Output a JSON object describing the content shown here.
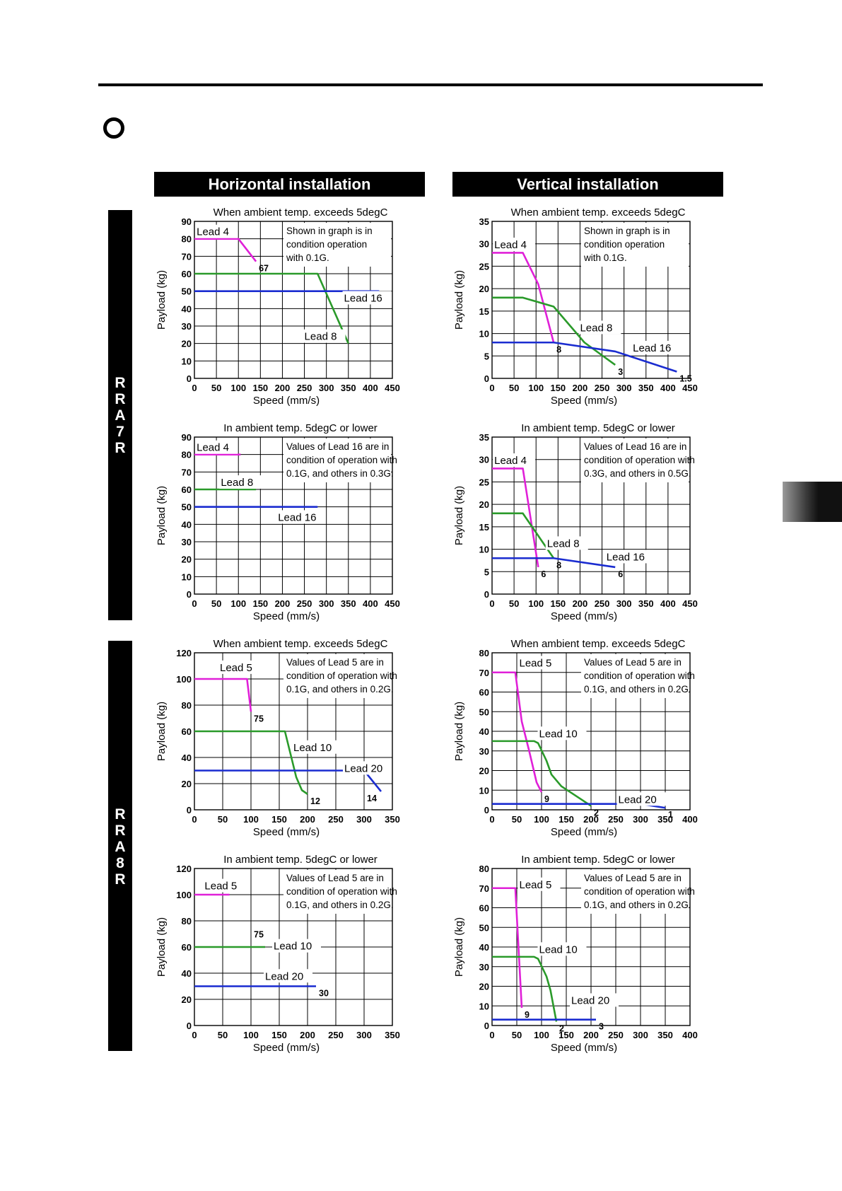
{
  "page": {
    "columns": [
      "Horizontal installation",
      "Vertical installation"
    ],
    "models": [
      {
        "name": "RRA7R",
        "letters": [
          "R",
          "R",
          "A",
          "7",
          "R"
        ]
      },
      {
        "name": "RRA8R",
        "letters": [
          "R",
          "R",
          "A",
          "8",
          "R"
        ]
      }
    ]
  },
  "chart_data": [
    {
      "type": "line",
      "title": "When ambient temp. exceeds 5degC",
      "xlabel": "Speed (mm/s)",
      "ylabel": "Payload (kg)",
      "xlim": [
        0,
        450
      ],
      "ylim": [
        0,
        90
      ],
      "xticks": [
        0,
        50,
        100,
        150,
        200,
        250,
        300,
        350,
        400,
        450
      ],
      "yticks": [
        0,
        10,
        20,
        30,
        40,
        50,
        60,
        70,
        80,
        90
      ],
      "note": [
        "Shown in graph is in",
        "condition operation",
        "with 0.1G."
      ],
      "series": [
        {
          "name": "Lead 4",
          "color": "#e020d8",
          "x": [
            0,
            100,
            140
          ],
          "y": [
            80,
            80,
            67
          ]
        },
        {
          "name": "Lead 8",
          "color": "#2a9a2a",
          "x": [
            0,
            280,
            350
          ],
          "y": [
            60,
            60,
            20
          ]
        },
        {
          "name": "Lead 16",
          "color": "#1a2cd0",
          "x": [
            0,
            420
          ],
          "y": [
            50,
            50
          ]
        }
      ],
      "annotations": [
        {
          "text": "67",
          "x": 140,
          "y": 67
        }
      ]
    },
    {
      "type": "line",
      "title": "When ambient temp. exceeds 5degC",
      "xlabel": "Speed (mm/s)",
      "ylabel": "Payload (kg)",
      "xlim": [
        0,
        450
      ],
      "ylim": [
        0,
        35
      ],
      "xticks": [
        0,
        50,
        100,
        150,
        200,
        250,
        300,
        350,
        400,
        450
      ],
      "yticks": [
        0,
        5,
        10,
        15,
        20,
        25,
        30,
        35
      ],
      "note": [
        "Shown in graph is in",
        "condition operation",
        "with 0.1G."
      ],
      "series": [
        {
          "name": "Lead 4",
          "color": "#e020d8",
          "x": [
            0,
            70,
            105,
            140
          ],
          "y": [
            28,
            28,
            21,
            8
          ]
        },
        {
          "name": "Lead 8",
          "color": "#2a9a2a",
          "x": [
            0,
            70,
            140,
            210,
            280
          ],
          "y": [
            18,
            18,
            16,
            8,
            3
          ]
        },
        {
          "name": "Lead 16",
          "color": "#1a2cd0",
          "x": [
            0,
            140,
            280,
            420
          ],
          "y": [
            8,
            8,
            6,
            1.5
          ]
        }
      ],
      "annotations": [
        {
          "text": "8",
          "x": 140,
          "y": 8
        },
        {
          "text": "3",
          "x": 280,
          "y": 3
        },
        {
          "text": "1.5",
          "x": 420,
          "y": 1.5
        }
      ]
    },
    {
      "type": "line",
      "title": "In ambient temp. 5degC or lower",
      "xlabel": "Speed (mm/s)",
      "ylabel": "Payload (kg)",
      "xlim": [
        0,
        450
      ],
      "ylim": [
        0,
        90
      ],
      "xticks": [
        0,
        50,
        100,
        150,
        200,
        250,
        300,
        350,
        400,
        450
      ],
      "yticks": [
        0,
        10,
        20,
        30,
        40,
        50,
        60,
        70,
        80,
        90
      ],
      "note": [
        "Values of Lead 16 are in",
        "condition of operation with",
        "0.1G, and others in 0.3G."
      ],
      "series": [
        {
          "name": "Lead 4",
          "color": "#e020d8",
          "x": [
            0,
            105
          ],
          "y": [
            80,
            80
          ]
        },
        {
          "name": "Lead 8",
          "color": "#2a9a2a",
          "x": [
            0,
            140
          ],
          "y": [
            60,
            60
          ]
        },
        {
          "name": "Lead 16",
          "color": "#1a2cd0",
          "x": [
            0,
            280
          ],
          "y": [
            50,
            50
          ]
        }
      ],
      "annotations": []
    },
    {
      "type": "line",
      "title": "In ambient temp. 5degC or lower",
      "xlabel": "Speed (mm/s)",
      "ylabel": "Payload (kg)",
      "xlim": [
        0,
        450
      ],
      "ylim": [
        0,
        35
      ],
      "xticks": [
        0,
        50,
        100,
        150,
        200,
        250,
        300,
        350,
        400,
        450
      ],
      "yticks": [
        0,
        5,
        10,
        15,
        20,
        25,
        30,
        35
      ],
      "note": [
        "Values of Lead 16 are in",
        "condition of operation with",
        "0.3G, and others in 0.5G."
      ],
      "series": [
        {
          "name": "Lead 4",
          "color": "#e020d8",
          "x": [
            0,
            70,
            105
          ],
          "y": [
            28,
            28,
            6
          ]
        },
        {
          "name": "Lead 8",
          "color": "#2a9a2a",
          "x": [
            0,
            70,
            105,
            140
          ],
          "y": [
            18,
            18,
            13,
            8
          ]
        },
        {
          "name": "Lead 16",
          "color": "#1a2cd0",
          "x": [
            0,
            140,
            280
          ],
          "y": [
            8,
            8,
            6
          ]
        }
      ],
      "annotations": [
        {
          "text": "6",
          "x": 105,
          "y": 6
        },
        {
          "text": "8",
          "x": 140,
          "y": 8
        },
        {
          "text": "6",
          "x": 280,
          "y": 6
        }
      ]
    },
    {
      "type": "line",
      "title": "When ambient temp. exceeds 5degC",
      "xlabel": "Speed (mm/s)",
      "ylabel": "Payload (kg)",
      "xlim": [
        0,
        350
      ],
      "ylim": [
        0,
        120
      ],
      "xticks": [
        0,
        50,
        100,
        150,
        200,
        250,
        300,
        350
      ],
      "yticks": [
        0,
        20,
        40,
        60,
        80,
        100,
        120
      ],
      "note": [
        "Values of Lead 5 are in",
        "condition of operation with",
        "0.1G, and others in 0.2G."
      ],
      "series": [
        {
          "name": "Lead 5",
          "color": "#e020d8",
          "x": [
            0,
            93,
            100
          ],
          "y": [
            100,
            100,
            75
          ]
        },
        {
          "name": "Lead 10",
          "color": "#2a9a2a",
          "x": [
            0,
            160,
            180,
            190,
            200
          ],
          "y": [
            60,
            60,
            25,
            15,
            12
          ]
        },
        {
          "name": "Lead 20",
          "color": "#1a2cd0",
          "x": [
            0,
            300,
            330
          ],
          "y": [
            30,
            30,
            14
          ]
        }
      ],
      "annotations": [
        {
          "text": "75",
          "x": 100,
          "y": 75
        },
        {
          "text": "12",
          "x": 200,
          "y": 12
        },
        {
          "text": "14",
          "x": 300,
          "y": 14
        }
      ]
    },
    {
      "type": "line",
      "title": "When ambient temp. exceeds 5degC",
      "xlabel": "Speed (mm/s)",
      "ylabel": "Payload (kg)",
      "xlim": [
        0,
        400
      ],
      "ylim": [
        0,
        80
      ],
      "xticks": [
        0,
        50,
        100,
        150,
        200,
        250,
        300,
        350,
        400
      ],
      "yticks": [
        0,
        10,
        20,
        30,
        40,
        50,
        60,
        70,
        80
      ],
      "note": [
        "Values of Lead 5 are in",
        "condition of operation with",
        "0.1G, and others in 0.2G."
      ],
      "series": [
        {
          "name": "Lead 5",
          "color": "#e020d8",
          "x": [
            0,
            47,
            60,
            75,
            90,
            100
          ],
          "y": [
            70,
            70,
            45,
            30,
            14,
            9
          ]
        },
        {
          "name": "Lead 10",
          "color": "#2a9a2a",
          "x": [
            0,
            85,
            93,
            110,
            120,
            140,
            200
          ],
          "y": [
            35,
            35,
            34,
            25,
            18,
            12,
            2
          ]
        },
        {
          "name": "Lead 20",
          "color": "#1a2cd0",
          "x": [
            0,
            300,
            350
          ],
          "y": [
            3,
            3,
            1
          ]
        }
      ],
      "annotations": [
        {
          "text": "9",
          "x": 100,
          "y": 9
        },
        {
          "text": "2",
          "x": 200,
          "y": 2
        },
        {
          "text": "1",
          "x": 350,
          "y": 1
        }
      ]
    },
    {
      "type": "line",
      "title": "In ambient temp. 5degC or lower",
      "xlabel": "Speed (mm/s)",
      "ylabel": "Payload (kg)",
      "xlim": [
        0,
        350
      ],
      "ylim": [
        0,
        120
      ],
      "xticks": [
        0,
        50,
        100,
        150,
        200,
        250,
        300,
        350
      ],
      "yticks": [
        0,
        20,
        40,
        60,
        80,
        100,
        120
      ],
      "note": [
        "Values of Lead 5 are in",
        "condition of operation with",
        "0.1G, and others in 0.2G."
      ],
      "series": [
        {
          "name": "Lead 5",
          "color": "#e020d8",
          "x": [
            0,
            62
          ],
          "y": [
            100,
            100
          ]
        },
        {
          "name": "Lead 10",
          "color": "#2a9a2a",
          "x": [
            0,
            125
          ],
          "y": [
            60,
            60
          ]
        },
        {
          "name": "Lead 20",
          "color": "#1a2cd0",
          "x": [
            0,
            215
          ],
          "y": [
            30,
            30
          ]
        }
      ],
      "annotations": [
        {
          "text": "75",
          "x": 100,
          "y": 75
        },
        {
          "text": "30",
          "x": 215,
          "y": 30
        }
      ]
    },
    {
      "type": "line",
      "title": "In ambient temp. 5degC or lower",
      "xlabel": "Speed (mm/s)",
      "ylabel": "Payload (kg)",
      "xlim": [
        0,
        400
      ],
      "ylim": [
        0,
        80
      ],
      "xticks": [
        0,
        50,
        100,
        150,
        200,
        250,
        300,
        350,
        400
      ],
      "yticks": [
        0,
        10,
        20,
        30,
        40,
        50,
        60,
        70,
        80
      ],
      "note": [
        "Values of Lead 5 are in",
        "condition of operation with",
        "0.1G, and others in 0.2G."
      ],
      "series": [
        {
          "name": "Lead 5",
          "color": "#e020d8",
          "x": [
            0,
            47,
            60
          ],
          "y": [
            70,
            70,
            9
          ]
        },
        {
          "name": "Lead 10",
          "color": "#2a9a2a",
          "x": [
            0,
            85,
            93,
            110,
            118,
            130
          ],
          "y": [
            35,
            35,
            34,
            25,
            18,
            2
          ]
        },
        {
          "name": "Lead 20",
          "color": "#1a2cd0",
          "x": [
            0,
            210
          ],
          "y": [
            3,
            3
          ]
        }
      ],
      "annotations": [
        {
          "text": "9",
          "x": 60,
          "y": 9
        },
        {
          "text": "2",
          "x": 130,
          "y": 2
        },
        {
          "text": "3",
          "x": 210,
          "y": 3
        }
      ]
    }
  ]
}
